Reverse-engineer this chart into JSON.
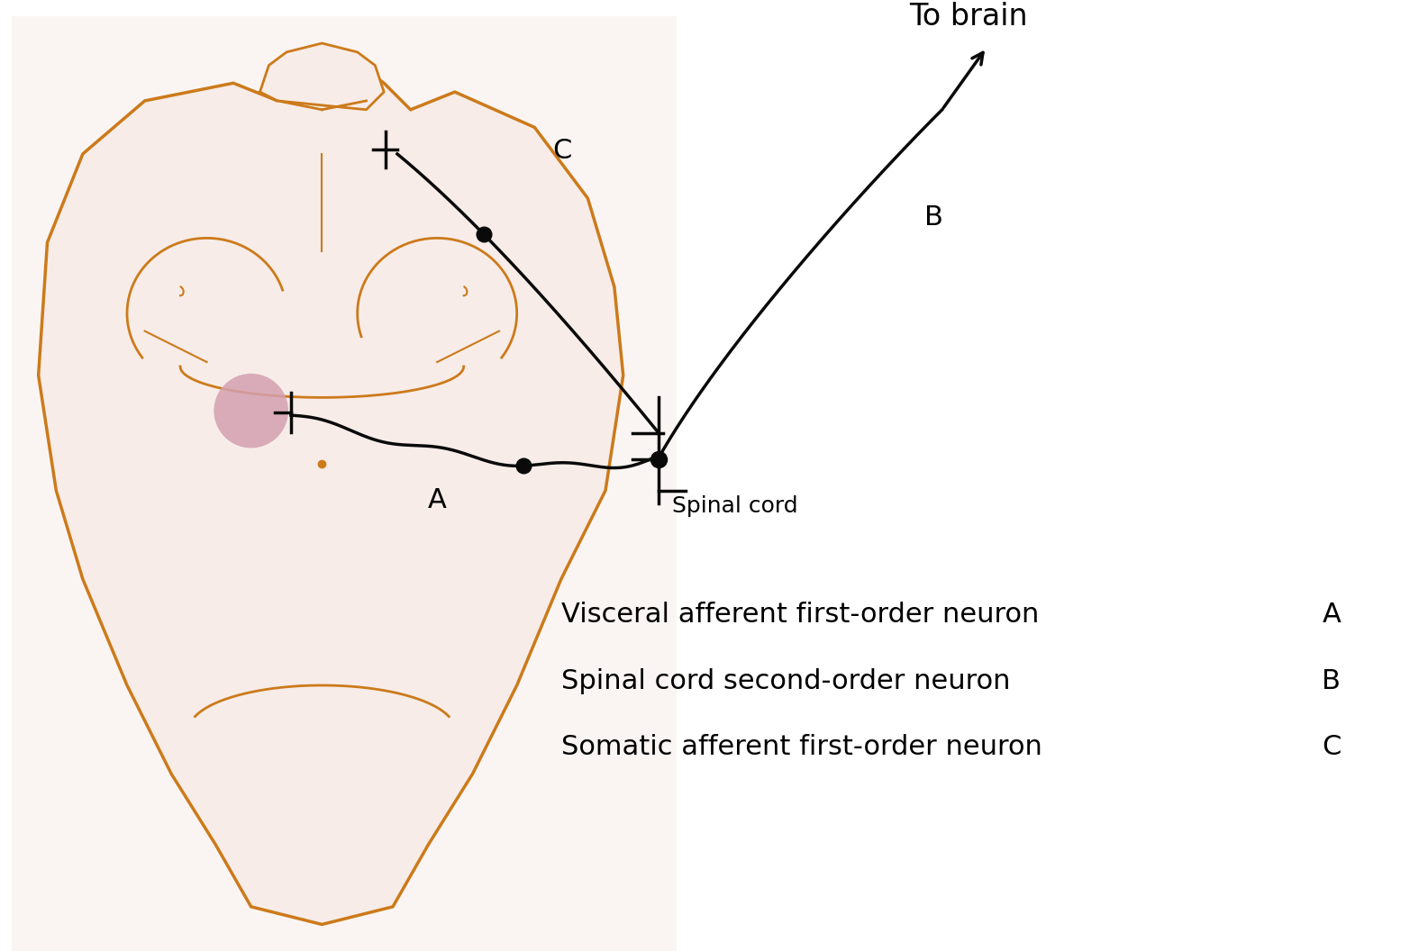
{
  "background_color": "#ffffff",
  "body_color": "#f7ece8",
  "body_outline_color": "#cc7a1a",
  "abscess_color": "#d4a0b0",
  "neuron_dot_color": "#0a0a0a",
  "line_color": "#0a0a0a",
  "to_brain_label": "To brain",
  "label_A": "A",
  "label_B": "B",
  "label_C": "C",
  "spinal_cord_label": "Spinal cord",
  "legend_line1": "Visceral afferent first-order neuron",
  "legend_label1": "A",
  "legend_line2": "Spinal cord second-order neuron",
  "legend_label2": "B",
  "legend_line3": "Somatic afferent first-order neuron",
  "legend_label3": "C",
  "font_size_labels": 20,
  "font_size_legend": 22,
  "font_size_brain": 24
}
